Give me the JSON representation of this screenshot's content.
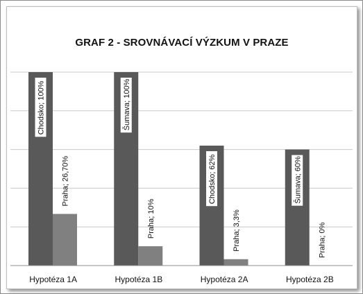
{
  "chart_data": {
    "type": "bar",
    "title": "GRAF 2 - SROVNÁVACÍ VÝZKUM V PRAZE",
    "xlabel": "",
    "ylabel": "",
    "ylim": [
      0,
      100
    ],
    "grid": true,
    "categories": [
      "Hypotéza 1A",
      "Hypotéza 1B",
      "Hypotéza 2A",
      "Hypotéza 2B"
    ],
    "series": [
      {
        "values": [
          100,
          100,
          62,
          60
        ],
        "labels": [
          "Chodsko; 100%",
          "Šumava; 100%",
          "Chodsko; 62%",
          "Šumava; 60%"
        ],
        "color": "#595959"
      },
      {
        "values": [
          26.7,
          10,
          3.3,
          0
        ],
        "labels": [
          "Praha; 26,70%",
          "Praha; 10%",
          "Praha; 3,3%",
          "Praha; 0%"
        ],
        "color": "#808080"
      }
    ]
  }
}
